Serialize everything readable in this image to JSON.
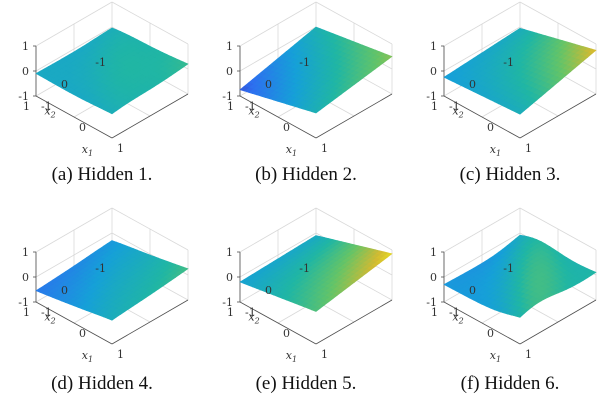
{
  "chart_data": [
    {
      "type": "surface",
      "caption": "(a) Hidden 1.",
      "xlabel": "x1",
      "ylabel": "x2",
      "xlim": [
        -1,
        1
      ],
      "ylim": [
        -1,
        1
      ],
      "zlim": [
        -1,
        1
      ],
      "z_ticks": [
        "1",
        "0",
        "-1"
      ],
      "x_ticks": [
        "-1",
        "0",
        "1"
      ],
      "y_ticks": [
        "1",
        "0",
        "-1"
      ],
      "grid": true,
      "colormap": "parula",
      "corner_z": {
        "near": -0.1,
        "right": -0.15,
        "far": 0.2,
        "left": -0.15
      },
      "ridge": {
        "amp": 0.12,
        "pos": 0.1
      }
    },
    {
      "type": "surface",
      "caption": "(b) Hidden 2.",
      "xlabel": "x1",
      "ylabel": "x2",
      "xlim": [
        -1,
        1
      ],
      "ylim": [
        -1,
        1
      ],
      "zlim": [
        -1,
        1
      ],
      "z_ticks": [
        "1",
        "0",
        "-1"
      ],
      "x_ticks": [
        "-1",
        "0",
        "1"
      ],
      "y_ticks": [
        "1",
        "0",
        "-1"
      ],
      "grid": true,
      "colormap": "parula",
      "corner_z": {
        "near": -0.75,
        "right": 0.0,
        "far": 0.5,
        "left": 0.0
      },
      "ridge": {
        "amp": 0.0,
        "pos": 0.0
      }
    },
    {
      "type": "surface",
      "caption": "(c) Hidden 3.",
      "xlabel": "x1",
      "ylabel": "x2",
      "xlim": [
        -1,
        1
      ],
      "ylim": [
        -1,
        1
      ],
      "zlim": [
        -1,
        1
      ],
      "z_ticks": [
        "1",
        "0",
        "-1"
      ],
      "x_ticks": [
        "-1",
        "0",
        "1"
      ],
      "y_ticks": [
        "1",
        "0",
        "-1"
      ],
      "grid": true,
      "colormap": "parula",
      "corner_z": {
        "near": -0.25,
        "right": -0.05,
        "far": 0.75,
        "left": -0.05
      },
      "ridge": {
        "amp": 0.0,
        "pos": 0.0
      }
    },
    {
      "type": "surface",
      "caption": "(d) Hidden 4.",
      "xlabel": "x1",
      "ylabel": "x2",
      "xlim": [
        -1,
        1
      ],
      "ylim": [
        -1,
        1
      ],
      "zlim": [
        -1,
        1
      ],
      "z_ticks": [
        "1",
        "0",
        "-1"
      ],
      "x_ticks": [
        "-1",
        "0",
        "1"
      ],
      "y_ticks": [
        "1",
        "0",
        "-1"
      ],
      "grid": true,
      "colormap": "parula",
      "corner_z": {
        "near": -0.55,
        "right": -0.1,
        "far": 0.25,
        "left": -0.35
      },
      "ridge": {
        "amp": 0.05,
        "pos": 0.0
      }
    },
    {
      "type": "surface",
      "caption": "(e) Hidden 5.",
      "xlabel": "x1",
      "ylabel": "x2",
      "xlim": [
        -1,
        1
      ],
      "ylim": [
        -1,
        1
      ],
      "zlim": [
        -1,
        1
      ],
      "z_ticks": [
        "1",
        "0",
        "-1"
      ],
      "x_ticks": [
        "-1",
        "0",
        "1"
      ],
      "y_ticks": [
        "1",
        "0",
        "-1"
      ],
      "grid": true,
      "colormap": "parula",
      "corner_z": {
        "near": -0.2,
        "right": 0.3,
        "far": 0.85,
        "left": -0.1
      },
      "ridge": {
        "amp": 0.0,
        "pos": 0.0
      }
    },
    {
      "type": "surface",
      "caption": "(f) Hidden 6.",
      "xlabel": "x1",
      "ylabel": "x2",
      "xlim": [
        -1,
        1
      ],
      "ylim": [
        -1,
        1
      ],
      "zlim": [
        -1,
        1
      ],
      "z_ticks": [
        "1",
        "0",
        "-1"
      ],
      "x_ticks": [
        "-1",
        "0",
        "1"
      ],
      "y_ticks": [
        "1",
        "0",
        "-1"
      ],
      "grid": true,
      "colormap": "parula",
      "corner_z": {
        "near": -0.3,
        "right": -0.25,
        "far": 0.1,
        "left": -0.4
      },
      "ridge": {
        "amp": 0.4,
        "pos": 0.2
      }
    }
  ]
}
